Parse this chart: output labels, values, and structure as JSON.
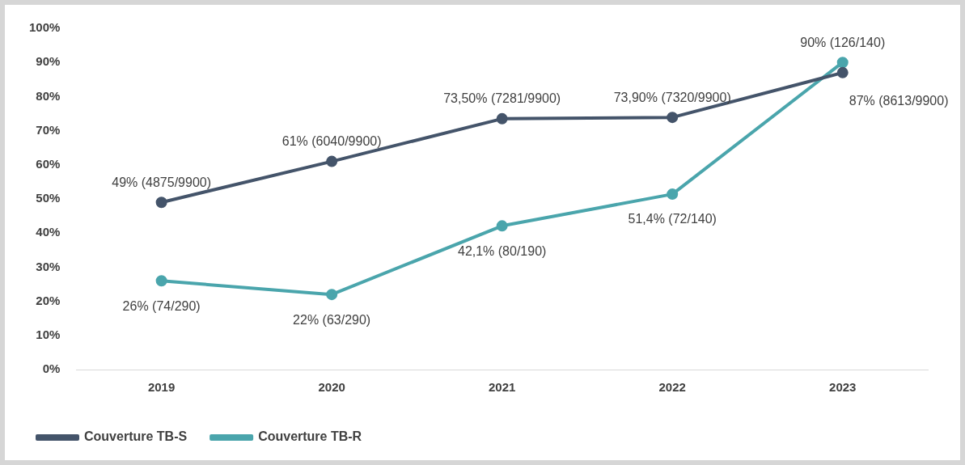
{
  "chart_data": {
    "type": "line",
    "categories": [
      "2019",
      "2020",
      "2021",
      "2022",
      "2023"
    ],
    "series": [
      {
        "name": "Couverture TB-S",
        "color": "#44546a",
        "values": [
          49,
          61,
          73.5,
          73.9,
          87
        ],
        "value_labels": [
          "49% (4875/9900)",
          "61% (6040/9900)",
          "73,50% (7281/9900)",
          "73,90% (7320/9900)",
          "87% (8613/9900)"
        ]
      },
      {
        "name": "Couverture TB-R",
        "color": "#4aa5ac",
        "values": [
          26,
          22,
          42.1,
          51.4,
          90
        ],
        "value_labels": [
          "26% (74/290)",
          "22% (63/290)",
          "42,1% (80/190)",
          "51,4% (72/140)",
          "90% (126/140)"
        ]
      }
    ],
    "ylim": [
      0,
      100
    ],
    "yticks": [
      {
        "value": 0,
        "label": "0%"
      },
      {
        "value": 10,
        "label": "10%"
      },
      {
        "value": 20,
        "label": "20%"
      },
      {
        "value": 30,
        "label": "30%"
      },
      {
        "value": 40,
        "label": "40%"
      },
      {
        "value": 50,
        "label": "50%"
      },
      {
        "value": 60,
        "label": "60%"
      },
      {
        "value": 70,
        "label": "70%"
      },
      {
        "value": 80,
        "label": "80%"
      },
      {
        "value": 90,
        "label": "90%"
      },
      {
        "value": 100,
        "label": "100%"
      }
    ],
    "grid": false,
    "legend": "bottom",
    "marker": "circle",
    "line_style": "solid"
  }
}
